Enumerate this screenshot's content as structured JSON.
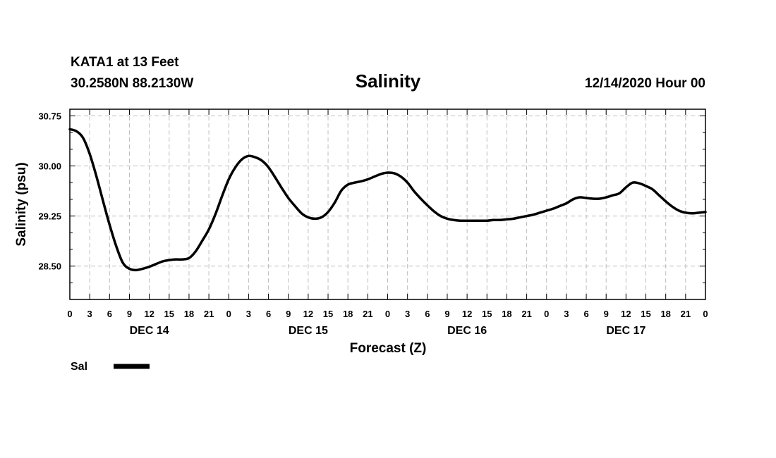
{
  "header": {
    "station": "KATA1 at 13 Feet",
    "coords": "30.2580N 88.2130W",
    "title": "Salinity",
    "run": "12/14/2020 Hour 00"
  },
  "chart_data": {
    "type": "line",
    "title": "Salinity",
    "xlabel": "Forecast (Z)",
    "ylabel": "Salinity (psu)",
    "ylim": [
      28.0,
      30.85
    ],
    "xlim": [
      0,
      96
    ],
    "grid": true,
    "y_ticks": [
      28.5,
      29.25,
      30.0,
      30.75
    ],
    "y_tick_labels": [
      "28.50",
      "29.25",
      "30.00",
      "30.75"
    ],
    "x_tick_hours": [
      0,
      3,
      6,
      9,
      12,
      15,
      18,
      21,
      24,
      27,
      30,
      33,
      36,
      39,
      42,
      45,
      48,
      51,
      54,
      57,
      60,
      63,
      66,
      69,
      72,
      75,
      78,
      81,
      84,
      87,
      90,
      93,
      96
    ],
    "x_tick_labels": [
      "0",
      "3",
      "6",
      "9",
      "12",
      "15",
      "18",
      "21",
      "0",
      "3",
      "6",
      "9",
      "12",
      "15",
      "18",
      "21",
      "0",
      "3",
      "6",
      "9",
      "12",
      "15",
      "18",
      "21",
      "0",
      "3",
      "6",
      "9",
      "12",
      "15",
      "18",
      "21",
      "0"
    ],
    "day_labels": [
      {
        "hour": 12,
        "label": "DEC 14"
      },
      {
        "hour": 36,
        "label": "DEC 15"
      },
      {
        "hour": 60,
        "label": "DEC 16"
      },
      {
        "hour": 84,
        "label": "DEC 17"
      }
    ],
    "series": [
      {
        "name": "Sal",
        "x": [
          0,
          1,
          2,
          3,
          4,
          5,
          6,
          7,
          8,
          9,
          10,
          11,
          12,
          13,
          14,
          15,
          16,
          17,
          18,
          19,
          20,
          21,
          22,
          23,
          24,
          25,
          26,
          27,
          28,
          29,
          30,
          31,
          32,
          33,
          34,
          35,
          36,
          37,
          38,
          39,
          40,
          41,
          42,
          43,
          44,
          45,
          46,
          47,
          48,
          49,
          50,
          51,
          52,
          53,
          54,
          55,
          56,
          57,
          58,
          59,
          60,
          61,
          62,
          63,
          64,
          65,
          66,
          67,
          68,
          69,
          70,
          71,
          72,
          73,
          74,
          75,
          76,
          77,
          78,
          79,
          80,
          81,
          82,
          83,
          84,
          85,
          86,
          87,
          88,
          89,
          90,
          91,
          92,
          93,
          94,
          95,
          96
        ],
        "values": [
          30.55,
          30.52,
          30.42,
          30.18,
          29.85,
          29.48,
          29.12,
          28.8,
          28.55,
          28.46,
          28.44,
          28.46,
          28.49,
          28.53,
          28.57,
          28.59,
          28.6,
          28.6,
          28.62,
          28.72,
          28.88,
          29.05,
          29.28,
          29.55,
          29.8,
          29.98,
          30.1,
          30.15,
          30.13,
          30.08,
          29.98,
          29.83,
          29.67,
          29.52,
          29.4,
          29.29,
          29.23,
          29.21,
          29.23,
          29.31,
          29.45,
          29.63,
          29.72,
          29.75,
          29.77,
          29.8,
          29.84,
          29.88,
          29.9,
          29.89,
          29.84,
          29.75,
          29.62,
          29.51,
          29.41,
          29.32,
          29.25,
          29.21,
          29.19,
          29.18,
          29.18,
          29.18,
          29.18,
          29.18,
          29.19,
          29.19,
          29.2,
          29.21,
          29.23,
          29.25,
          29.27,
          29.3,
          29.33,
          29.36,
          29.4,
          29.44,
          29.5,
          29.53,
          29.52,
          29.51,
          29.51,
          29.53,
          29.56,
          29.59,
          29.68,
          29.75,
          29.74,
          29.7,
          29.65,
          29.56,
          29.47,
          29.39,
          29.33,
          29.3,
          29.29,
          29.3,
          29.31
        ]
      }
    ],
    "legend": {
      "label": "Sal",
      "position": "bottom-left"
    }
  }
}
